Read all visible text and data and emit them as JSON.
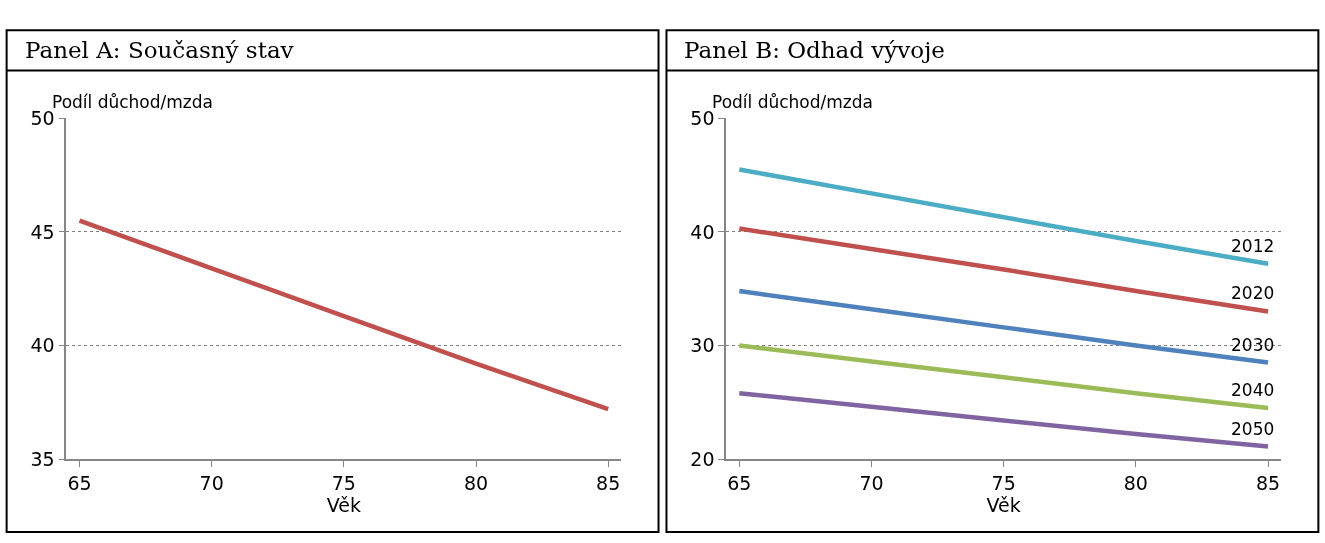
{
  "chart_data": [
    {
      "type": "line",
      "title": "Panel A: Současný stav",
      "xlabel": "Věk",
      "ylabel": "Podíl důchod/mzda",
      "x": [
        65,
        70,
        75,
        80,
        85
      ],
      "xlim": [
        64.5,
        85.5
      ],
      "xticks": [
        65,
        70,
        75,
        80,
        85
      ],
      "ylim": [
        35,
        50
      ],
      "yticks": [
        35,
        40,
        45,
        50
      ],
      "grid": "y",
      "series": [
        {
          "color": "#c0504d",
          "values": [
            45.5,
            43.4,
            41.3,
            39.2,
            37.2
          ]
        }
      ]
    },
    {
      "type": "line",
      "title": "Panel B: Odhad vývoje",
      "xlabel": "Věk",
      "ylabel": "Podíl důchod/mzda",
      "x": [
        65,
        70,
        75,
        80,
        85
      ],
      "xlim": [
        64.5,
        85.5
      ],
      "xticks": [
        65,
        70,
        75,
        80,
        85
      ],
      "ylim": [
        20,
        50
      ],
      "yticks": [
        20,
        30,
        40,
        50
      ],
      "grid": "y",
      "series": [
        {
          "name": "2012",
          "color": "#4bacc6",
          "values": [
            45.5,
            43.4,
            41.3,
            39.2,
            37.2
          ]
        },
        {
          "name": "2020",
          "color": "#c0504d",
          "values": [
            40.3,
            38.5,
            36.7,
            34.8,
            33.0
          ]
        },
        {
          "name": "2030",
          "color": "#4f81bd",
          "values": [
            34.8,
            33.2,
            31.6,
            30.0,
            28.5
          ]
        },
        {
          "name": "2040",
          "color": "#9bbb59",
          "values": [
            30.0,
            28.6,
            27.2,
            25.8,
            24.5
          ]
        },
        {
          "name": "2050",
          "color": "#8064a2",
          "values": [
            25.8,
            24.6,
            23.4,
            22.2,
            21.1
          ]
        }
      ]
    }
  ]
}
